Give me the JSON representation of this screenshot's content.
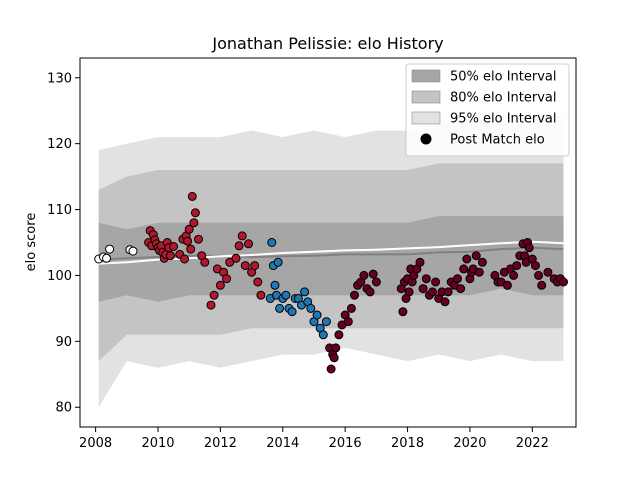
{
  "chart_data": {
    "type": "scatter",
    "title": "Jonathan Pelissie: elo History",
    "xlabel": "",
    "ylabel": "elo score",
    "xlim": [
      2007.5,
      2023.4
    ],
    "ylim": [
      77,
      133
    ],
    "x_ticks": [
      2008,
      2010,
      2012,
      2014,
      2016,
      2018,
      2020,
      2022
    ],
    "y_ticks": [
      80,
      90,
      100,
      110,
      120,
      130
    ],
    "grid": false,
    "legend": {
      "placement": "top-right",
      "entries": [
        {
          "label": "50% elo Interval",
          "kind": "band",
          "color": "#a6a6a6"
        },
        {
          "label": "80% elo Interval",
          "kind": "band",
          "color": "#c4c4c4"
        },
        {
          "label": "95% elo Interval",
          "kind": "band",
          "color": "#e2e2e2"
        },
        {
          "label": "Post Match elo",
          "kind": "marker",
          "color": "#000000"
        }
      ]
    },
    "colors": {
      "band50": "#a6a6a6",
      "band80": "#c4c4c4",
      "band95": "#e2e2e2",
      "median_line": "#808080",
      "mean_line": "#ffffff",
      "point_edge": "#000000"
    },
    "bands": {
      "x": [
        2008.1,
        2009,
        2010,
        2011,
        2012,
        2013,
        2014,
        2015,
        2016,
        2017,
        2018,
        2019,
        2020,
        2021,
        2022,
        2023
      ],
      "p95_low": [
        80,
        87,
        86,
        87,
        86,
        87,
        88,
        88,
        89,
        88,
        87,
        88,
        87,
        88,
        87,
        87
      ],
      "p95_high": [
        119,
        120,
        121,
        121,
        121,
        122,
        121,
        122,
        121,
        122,
        122,
        123,
        124,
        123,
        125,
        124
      ],
      "p80_low": [
        87,
        91,
        91,
        91,
        91,
        92,
        92,
        92,
        92,
        92,
        92,
        92,
        92,
        92,
        92,
        92
      ],
      "p80_high": [
        113,
        115,
        116,
        116,
        116,
        116,
        116,
        116,
        116,
        116,
        116,
        117,
        117,
        117,
        117,
        117
      ],
      "p50_low": [
        96,
        97,
        96,
        97,
        97,
        97,
        97,
        97,
        97,
        97,
        97,
        97,
        97,
        98,
        97,
        97
      ],
      "p50_high": [
        108,
        107,
        108,
        108,
        108,
        108,
        108,
        108,
        108,
        108,
        108,
        109,
        109,
        109,
        109,
        109
      ],
      "median": [
        102.4,
        102.6,
        102.8,
        103.0,
        103.0,
        102.8,
        102.9,
        103.0,
        103.2,
        103.2,
        103.2,
        103.5,
        103.6,
        104.0,
        104.2,
        104.0
      ],
      "mean": [
        101.8,
        102.0,
        102.4,
        102.6,
        102.9,
        103.1,
        103.4,
        103.6,
        103.8,
        103.9,
        104.1,
        104.3,
        104.6,
        104.9,
        105.1,
        104.9
      ]
    },
    "series": [
      {
        "color": "#ffffff",
        "x": [
          2008.1,
          2008.25,
          2008.35,
          2008.45,
          2009.1,
          2009.2
        ],
        "y": [
          102.5,
          102.8,
          102.6,
          104.0,
          103.9,
          103.7
        ]
      },
      {
        "color": "#b2182b",
        "x": [
          2009.7,
          2009.75,
          2009.8,
          2009.85,
          2009.9,
          2009.95,
          2010.0,
          2010.05,
          2010.1,
          2010.15,
          2010.2,
          2010.25,
          2010.3,
          2010.35,
          2010.4,
          2010.5,
          2010.7,
          2010.8,
          2010.85,
          2010.9,
          2010.95,
          2011.0,
          2011.05,
          2011.1,
          2011.15,
          2011.2,
          2011.3,
          2011.4,
          2011.5,
          2011.7,
          2011.8,
          2011.9,
          2012.0,
          2012.1,
          2012.2,
          2012.3,
          2012.5,
          2012.6,
          2012.7,
          2012.8,
          2012.9,
          2013.0,
          2013.1,
          2013.2,
          2013.3
        ],
        "y": [
          105.0,
          106.8,
          104.5,
          106.2,
          105.4,
          104.8,
          104.2,
          103.8,
          104.5,
          103.5,
          102.6,
          103.2,
          105.0,
          104.2,
          103.0,
          104.4,
          103.2,
          105.5,
          102.5,
          106.0,
          105.2,
          107.0,
          104.0,
          112.0,
          108.0,
          109.5,
          105.5,
          103.0,
          102.0,
          95.5,
          97.0,
          101.0,
          98.5,
          100.5,
          99.5,
          102.0,
          102.6,
          104.5,
          106.0,
          101.5,
          104.8,
          100.5,
          101.5,
          99.0,
          97.0
        ]
      },
      {
        "color": "#1f78b4",
        "x": [
          2013.6,
          2013.65,
          2013.7,
          2013.75,
          2013.8,
          2013.85,
          2013.9,
          2014.0,
          2014.1,
          2014.2,
          2014.3,
          2014.4,
          2014.5,
          2014.6,
          2014.7,
          2014.8,
          2014.9,
          2015.0,
          2015.1,
          2015.2,
          2015.3,
          2015.4
        ],
        "y": [
          96.5,
          105.0,
          101.5,
          98.5,
          97.0,
          102.0,
          95.0,
          96.5,
          97.0,
          95.0,
          94.5,
          96.5,
          96.5,
          95.5,
          97.5,
          96.0,
          95.0,
          93.0,
          94.0,
          92.0,
          91.0,
          93.0
        ]
      },
      {
        "color": "#67001f",
        "x": [
          2015.5,
          2015.55,
          2015.6,
          2015.65,
          2015.7,
          2015.8,
          2015.9,
          2016.0,
          2016.1,
          2016.2,
          2016.3,
          2016.4,
          2016.5,
          2016.6,
          2016.7,
          2016.8,
          2016.9,
          2017.0
        ],
        "y": [
          89.0,
          85.8,
          88.0,
          87.5,
          89.0,
          91.0,
          92.5,
          94.0,
          93.0,
          95.0,
          97.0,
          98.5,
          99.0,
          100.0,
          98.0,
          97.5,
          100.2,
          99.0
        ]
      },
      {
        "color": "#67001f",
        "x": [
          2017.8,
          2017.85,
          2017.9,
          2017.95,
          2018.0,
          2018.05,
          2018.1,
          2018.15,
          2018.2,
          2018.3,
          2018.4,
          2018.5,
          2018.6,
          2018.7,
          2018.8,
          2018.9,
          2019.0,
          2019.1,
          2019.2,
          2019.3,
          2019.4,
          2019.5,
          2019.6,
          2019.7,
          2019.8,
          2019.9,
          2020.0,
          2020.05,
          2020.1,
          2020.2,
          2020.3,
          2020.4,
          2020.8,
          2020.9,
          2021.0,
          2021.1,
          2021.2,
          2021.3,
          2021.4,
          2021.5,
          2021.6,
          2021.7,
          2021.75,
          2021.8,
          2021.85,
          2021.9,
          2022.0,
          2022.1,
          2022.2,
          2022.3,
          2022.5,
          2022.7,
          2022.8,
          2022.9,
          2023.0
        ],
        "y": [
          98.0,
          94.5,
          99.0,
          96.5,
          99.5,
          97.5,
          101.0,
          99.0,
          100.0,
          101.0,
          102.0,
          98.0,
          99.5,
          97.0,
          97.5,
          99.0,
          96.5,
          97.5,
          96.0,
          97.5,
          99.0,
          98.5,
          99.5,
          98.0,
          101.0,
          102.5,
          99.5,
          100.5,
          101.0,
          103.0,
          100.5,
          102.0,
          100.0,
          99.0,
          99.0,
          100.5,
          98.5,
          101.0,
          100.0,
          101.5,
          103.0,
          104.8,
          103.0,
          102.0,
          105.0,
          104.2,
          102.5,
          101.5,
          100.0,
          98.5,
          100.5,
          99.5,
          99.0,
          99.5,
          99.0
        ]
      }
    ]
  }
}
